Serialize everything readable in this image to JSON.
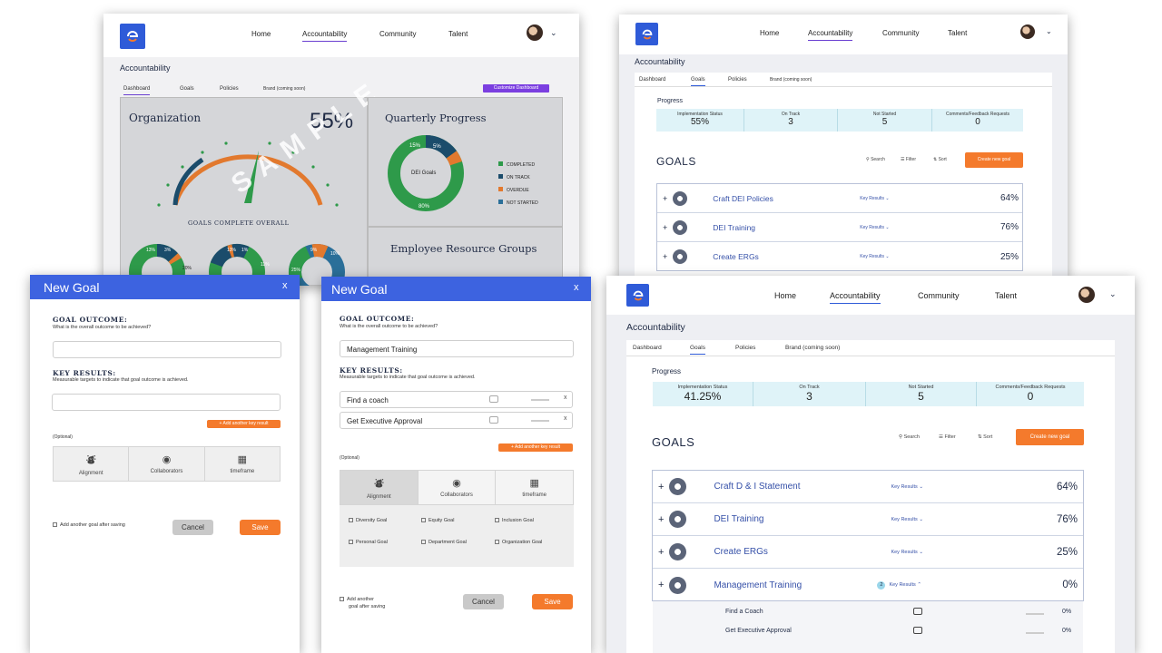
{
  "dashboard": {
    "nav": [
      "Home",
      "Accountability",
      "Community",
      "Talent"
    ],
    "title": "Accountability",
    "tabs": [
      "Dashboard",
      "Goals",
      "Policies",
      "Brand (coming soon)"
    ],
    "customize_btn": "Customize Dashboard",
    "org_title": "Organization",
    "org_pct": "55%",
    "gauge_label": "GOALS COMPLETE OVERALL",
    "watermark": "SAMPLE",
    "quarterly_title": "Quarterly Progress",
    "donut_center": "DEI Goals",
    "donut_labels": [
      "15%",
      "5%",
      "80%"
    ],
    "legend": [
      "COMPLETED",
      "ON TRACK",
      "OVERDUE",
      "NOT STARTED"
    ],
    "erg_title": "Employee Resource Groups",
    "mini_labels": [
      "13%",
      "3%",
      "20%",
      "13%",
      "1%",
      "11%",
      "9%",
      "10%",
      "25%"
    ],
    "colors": {
      "completed": "#2e9a4a",
      "on_track": "#1b4c6b",
      "overdue": "#e2792e",
      "not_started": "#2a6f99"
    }
  },
  "goals_small": {
    "nav": [
      "Home",
      "Accountability",
      "Community",
      "Talent"
    ],
    "title": "Accountability",
    "tabs": [
      "Dashboard",
      "Goals",
      "Policies",
      "Brand (coming soon)"
    ],
    "progress_label": "Progress",
    "metrics": [
      {
        "label": "Implementation Status",
        "value": "55%"
      },
      {
        "label": "On Track",
        "value": "3"
      },
      {
        "label": "Not Started",
        "value": "5"
      },
      {
        "label": "Comments/Feedback Requests",
        "value": "0"
      }
    ],
    "goals_heading": "GOALS",
    "tools": [
      "Search",
      "Filter",
      "Sort"
    ],
    "create_btn": "Create new goal",
    "goals": [
      {
        "name": "Craft DEI Policies",
        "kr": "Key Results",
        "pct": "64%"
      },
      {
        "name": "DEI Training",
        "kr": "Key Results",
        "pct": "76%"
      },
      {
        "name": "Create ERGs",
        "kr": "Key Results",
        "pct": "25%"
      }
    ]
  },
  "modal1": {
    "title": "New Goal",
    "close": "x",
    "outcome_label": "GOAL OUTCOME:",
    "outcome_hint": "What is the overall outcome to be achieved?",
    "kr_label": "KEY RESULTS:",
    "kr_hint": "Measurable targets to indicate that goal outcome is achieved.",
    "add_kr": "+ Add another key result",
    "optional": "(Optional)",
    "segments": [
      "Alignment",
      "Collaborators",
      "timeframe"
    ],
    "add_another": "Add another goal after saving",
    "cancel": "Cancel",
    "save": "Save"
  },
  "modal2": {
    "title": "New Goal",
    "close": "x",
    "outcome_label": "GOAL OUTCOME:",
    "outcome_hint": "What is the overall outcome to be achieved?",
    "outcome_value": "Management Training",
    "kr_label": "KEY RESULTS:",
    "kr_hint": "Measurable targets to indicate that goal outcome is achieved.",
    "kr_values": [
      "Find a coach",
      "Get Executive Approval"
    ],
    "add_kr": "+ Add another key result",
    "optional": "(Optional)",
    "segments": [
      "Alignment",
      "Collaborators",
      "timeframe"
    ],
    "checks": [
      "Diversity Goal",
      "Equity Goal",
      "Inclusion Goal",
      "Personal Goal",
      "Department Goal",
      "Organization Goal"
    ],
    "add_another_1": "Add another",
    "add_another_2": "goal after saving",
    "cancel": "Cancel",
    "save": "Save"
  },
  "goals_large": {
    "nav": [
      "Home",
      "Accountability",
      "Community",
      "Talent"
    ],
    "title": "Accountability",
    "tabs": [
      "Dashboard",
      "Goals",
      "Policies",
      "Brand (coming soon)"
    ],
    "progress_label": "Progress",
    "metrics": [
      {
        "label": "Implementation Status",
        "value": "41.25%"
      },
      {
        "label": "On Track",
        "value": "3"
      },
      {
        "label": "Not Started",
        "value": "5"
      },
      {
        "label": "Comments/Feedback Requests",
        "value": "0"
      }
    ],
    "goals_heading": "GOALS",
    "tools": [
      "Search",
      "Filter",
      "Sort"
    ],
    "create_btn": "Create new goal",
    "goals": [
      {
        "name": "Craft D & I Statement",
        "kr": "Key Results",
        "pct": "64%"
      },
      {
        "name": "DEI Training",
        "kr": "Key Results",
        "pct": "76%"
      },
      {
        "name": "Create ERGs",
        "kr": "Key Results",
        "pct": "25%"
      },
      {
        "name": "Management Training",
        "kr": "Key Results",
        "pct": "0%",
        "badge": "2"
      }
    ],
    "subitems": [
      {
        "name": "Find a Coach",
        "pct": "0%"
      },
      {
        "name": "Get Executive Approval",
        "pct": "0%"
      }
    ]
  }
}
